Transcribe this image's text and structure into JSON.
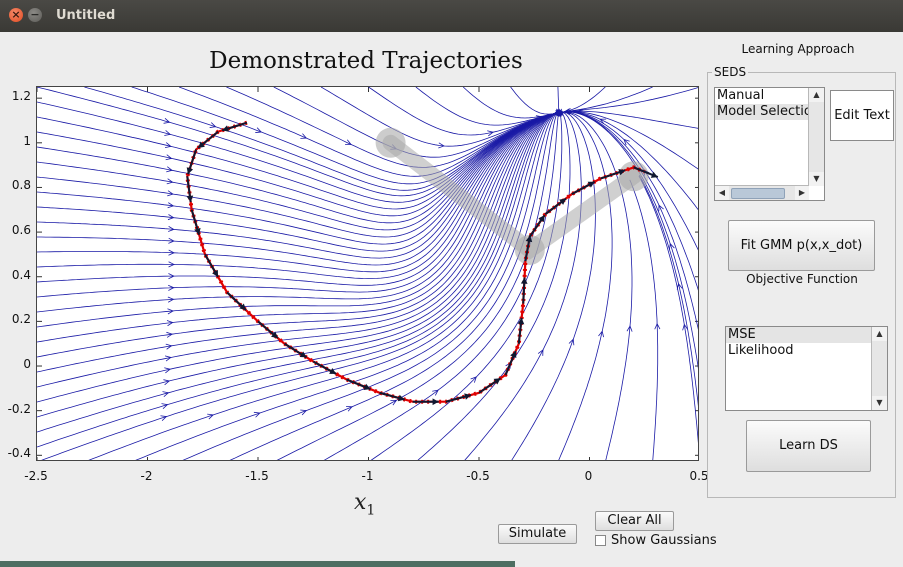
{
  "window": {
    "title": "Untitled"
  },
  "plot": {
    "title": "Demonstrated Trajectories",
    "xlabel": "x",
    "xlabel_sub": "1",
    "xticks": [
      "-2.5",
      "-2",
      "-1.5",
      "-1",
      "-0.5",
      "0",
      "0.5"
    ],
    "yticks": [
      "1.2",
      "1",
      "0.8",
      "0.6",
      "0.4",
      "0.2",
      "0",
      "-0.2",
      "-0.4"
    ]
  },
  "chart_data": {
    "type": "line",
    "xlim": [
      -2.5,
      0.5
    ],
    "ylim": [
      -0.43,
      1.25
    ],
    "grid": false,
    "series": [
      {
        "color": "#e00000",
        "x": [
          -1.55,
          -1.68,
          -1.78,
          -1.82,
          -1.8,
          -1.74,
          -1.64,
          -1.5,
          -1.38,
          -1.25,
          -1.1,
          -0.95,
          -0.8,
          -0.65,
          -0.5,
          -0.38,
          -0.32,
          -0.3,
          -0.29,
          -0.27,
          -0.2,
          -0.08,
          0.05,
          0.2,
          0.25
        ],
        "y": [
          1.09,
          1.05,
          0.97,
          0.85,
          0.7,
          0.5,
          0.33,
          0.2,
          0.1,
          0.02,
          -0.06,
          -0.12,
          -0.16,
          -0.16,
          -0.12,
          -0.04,
          0.1,
          0.28,
          0.47,
          0.58,
          0.68,
          0.77,
          0.84,
          0.89,
          0.87
        ]
      }
    ],
    "gaussian_centers": [
      {
        "x": -0.9,
        "y": 1.0
      },
      {
        "x": -0.27,
        "y": 0.52
      },
      {
        "x": 0.2,
        "y": 0.85
      }
    ],
    "attractor": {
      "x": 0.2,
      "y": 0.85
    }
  },
  "panel": {
    "learning_approach": "Learning Approach",
    "group_label": "SEDS",
    "method_list": [
      "Manual",
      "Model Selection"
    ],
    "edit_text": "Edit Text",
    "fit_button": "Fit GMM p(x,x_dot)",
    "objective_label": "Objective Function",
    "objective_list": [
      "MSE",
      "Likelihood"
    ],
    "learn_button": "Learn DS"
  },
  "bottom": {
    "simulate": "Simulate",
    "clear_all": "Clear All",
    "show_gaussians": "Show Gaussians"
  },
  "colors": {
    "stream": "#1a1aa6",
    "trajectory": "#e00000",
    "velocity_arrows": "#101830"
  }
}
